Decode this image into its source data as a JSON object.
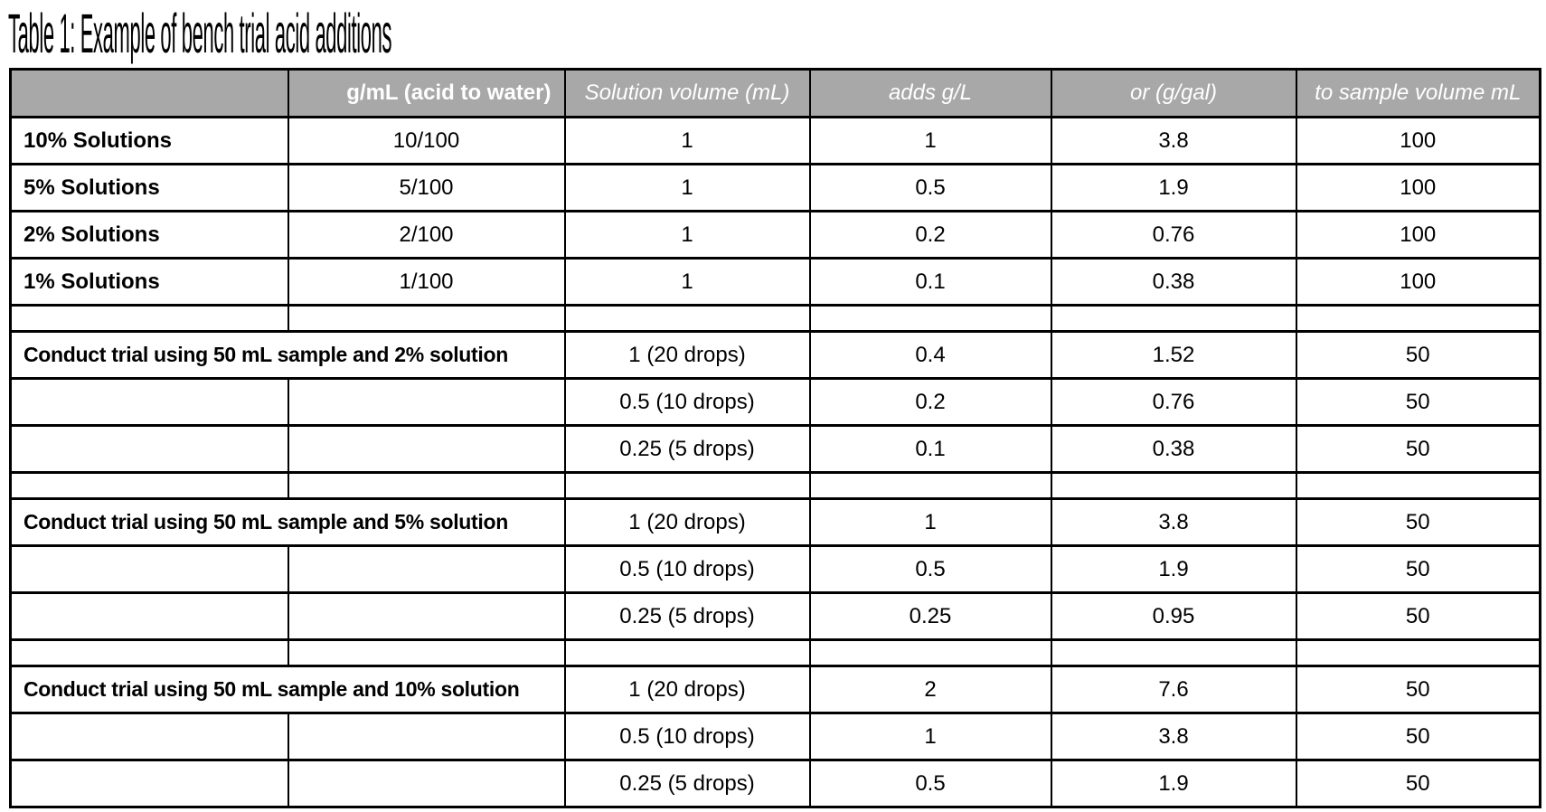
{
  "title": "Table 1: Example of bench trial acid additions",
  "colors": {
    "header_bg": "#a8a8a8",
    "header_text": "#ffffff",
    "border": "#000000",
    "page_bg": "#ffffff"
  },
  "table": {
    "header": {
      "corner": "",
      "acid_ratio": "g/mL (acid to water)",
      "solution_volume": "Solution volume (mL)",
      "adds_gl": "adds g/L",
      "g_gal": "or (g/gal)",
      "sample_volume": "to sample volume mL"
    },
    "solution_rows": [
      {
        "label": "10% Solutions",
        "ratio": "10/100",
        "volume": "1",
        "adds_gl": "1",
        "g_gal": "3.8",
        "sample_ml": "100"
      },
      {
        "label": "5% Solutions",
        "ratio": "5/100",
        "volume": "1",
        "adds_gl": "0.5",
        "g_gal": "1.9",
        "sample_ml": "100"
      },
      {
        "label": "2% Solutions",
        "ratio": "2/100",
        "volume": "1",
        "adds_gl": "0.2",
        "g_gal": "0.76",
        "sample_ml": "100"
      },
      {
        "label": "1% Solutions",
        "ratio": "1/100",
        "volume": "1",
        "adds_gl": "0.1",
        "g_gal": "0.38",
        "sample_ml": "100"
      }
    ],
    "trial_sections": [
      {
        "label": "Conduct trial using 50 mL sample and 2% solution",
        "rows": [
          {
            "volume": "1 (20 drops)",
            "adds_gl": "0.4",
            "g_gal": "1.52",
            "sample_ml": "50"
          },
          {
            "volume": "0.5 (10 drops)",
            "adds_gl": "0.2",
            "g_gal": "0.76",
            "sample_ml": "50"
          },
          {
            "volume": "0.25 (5 drops)",
            "adds_gl": "0.1",
            "g_gal": "0.38",
            "sample_ml": "50"
          }
        ]
      },
      {
        "label": "Conduct trial using 50 mL sample and 5% solution",
        "rows": [
          {
            "volume": "1 (20 drops)",
            "adds_gl": "1",
            "g_gal": "3.8",
            "sample_ml": "50"
          },
          {
            "volume": "0.5 (10 drops)",
            "adds_gl": "0.5",
            "g_gal": "1.9",
            "sample_ml": "50"
          },
          {
            "volume": "0.25 (5 drops)",
            "adds_gl": "0.25",
            "g_gal": "0.95",
            "sample_ml": "50"
          }
        ]
      },
      {
        "label": "Conduct trial using 50 mL sample and 10% solution",
        "rows": [
          {
            "volume": "1 (20 drops)",
            "adds_gl": "2",
            "g_gal": "7.6",
            "sample_ml": "50"
          },
          {
            "volume": "0.5 (10 drops)",
            "adds_gl": "1",
            "g_gal": "3.8",
            "sample_ml": "50"
          },
          {
            "volume": "0.25 (5 drops)",
            "adds_gl": "0.5",
            "g_gal": "1.9",
            "sample_ml": "50"
          }
        ]
      }
    ]
  }
}
